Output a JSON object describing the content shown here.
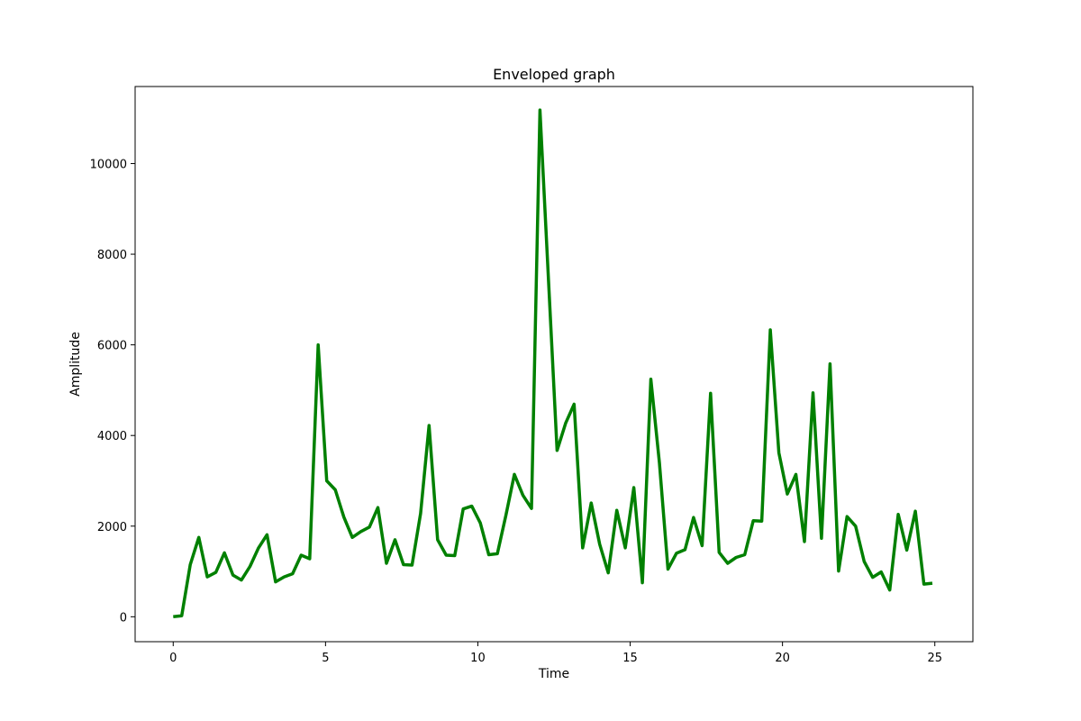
{
  "chart_data": {
    "type": "line",
    "title": "Enveloped graph",
    "xlabel": "Time",
    "ylabel": "Amplitude",
    "xlim": [
      -1.25,
      26.25
    ],
    "ylim": [
      -550,
      11700
    ],
    "xticks": [
      0,
      5,
      10,
      15,
      20,
      25
    ],
    "yticks": [
      0,
      2000,
      4000,
      6000,
      8000,
      10000
    ],
    "grid": false,
    "line_color": "#008000",
    "series": [
      {
        "x": [
          0.0,
          0.28,
          0.56,
          0.84,
          1.12,
          1.4,
          1.68,
          1.96,
          2.24,
          2.52,
          2.8,
          3.08,
          3.36,
          3.64,
          3.92,
          4.2,
          4.48,
          4.76,
          5.04,
          5.32,
          5.6,
          5.88,
          6.16,
          6.44,
          6.72,
          7.0,
          7.28,
          7.56,
          7.84,
          8.12,
          8.4,
          8.68,
          8.96,
          9.24,
          9.52,
          9.8,
          10.08,
          10.36,
          10.64,
          10.92,
          11.2,
          11.48,
          11.76,
          12.04,
          12.32,
          12.6,
          12.88,
          13.16,
          13.44,
          13.72,
          14.0,
          14.28,
          14.56,
          14.84,
          15.12,
          15.4,
          15.68,
          15.96,
          16.24,
          16.52,
          16.8,
          17.08,
          17.36,
          17.64,
          17.92,
          18.2,
          18.48,
          18.76,
          19.04,
          19.32,
          19.6,
          19.88,
          20.16,
          20.44,
          20.72,
          21.0,
          21.28,
          21.56,
          21.84,
          22.12,
          22.4,
          22.68,
          22.96,
          23.24,
          23.52,
          23.8,
          24.08,
          24.36,
          24.64,
          24.92
        ],
        "y": [
          0,
          20,
          1150,
          1750,
          880,
          980,
          1410,
          920,
          810,
          1110,
          1520,
          1810,
          770,
          880,
          950,
          1360,
          1280,
          6000,
          3000,
          2800,
          2200,
          1750,
          1880,
          1980,
          2410,
          1180,
          1700,
          1150,
          1140,
          2280,
          4220,
          1700,
          1360,
          1350,
          2380,
          2440,
          2070,
          1370,
          1390,
          2240,
          3140,
          2680,
          2390,
          11180,
          7420,
          3670,
          4270,
          4690,
          1520,
          2510,
          1600,
          970,
          2350,
          1520,
          2850,
          750,
          5240,
          3400,
          1050,
          1400,
          1480,
          2190,
          1570,
          4930,
          1420,
          1180,
          1310,
          1370,
          2120,
          2110,
          6330,
          3620,
          2710,
          3140,
          1660,
          4940,
          1730,
          5580,
          1010,
          2210,
          2000,
          1220,
          870,
          990,
          590,
          2260,
          1470,
          2330,
          720,
          740
        ]
      }
    ]
  }
}
